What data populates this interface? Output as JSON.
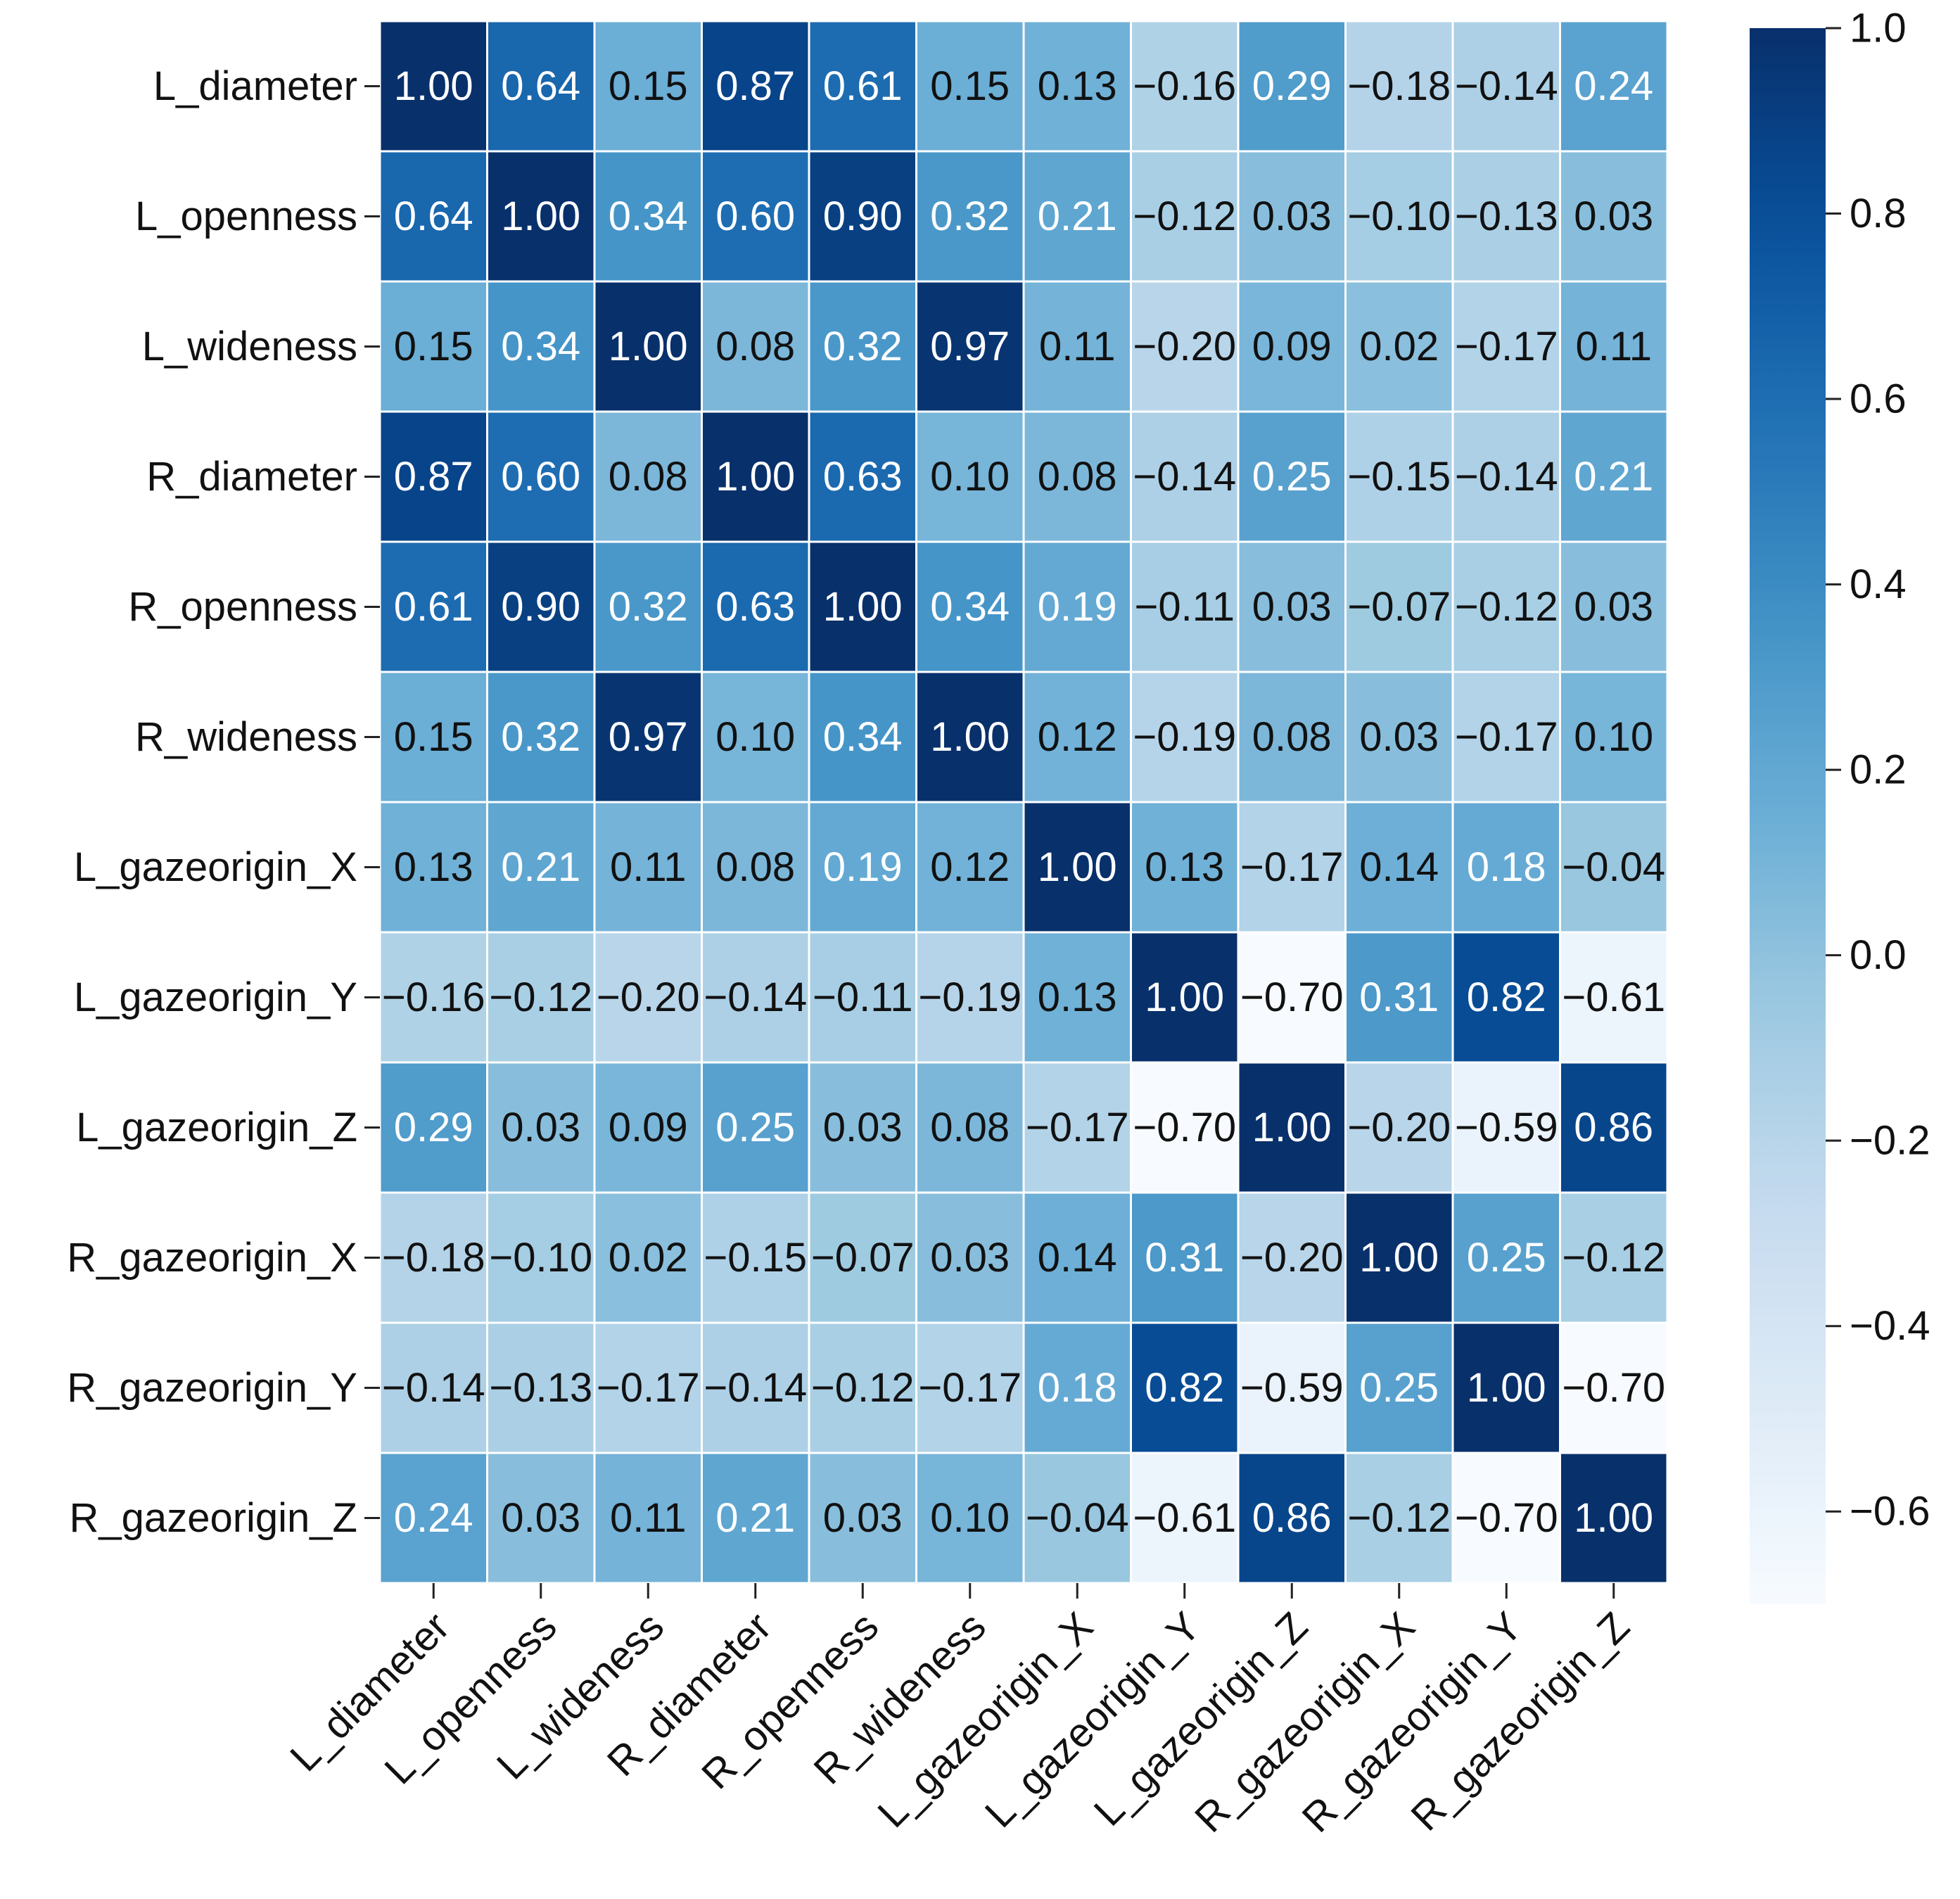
{
  "chart_data": {
    "type": "heatmap",
    "title": "",
    "xlabel": "",
    "ylabel": "",
    "variables": [
      "L_diameter",
      "L_openness",
      "L_wideness",
      "R_diameter",
      "R_openness",
      "R_wideness",
      "L_gazeorigin_X",
      "L_gazeorigin_Y",
      "L_gazeorigin_Z",
      "R_gazeorigin_X",
      "R_gazeorigin_Y",
      "R_gazeorigin_Z"
    ],
    "matrix": [
      [
        1.0,
        0.64,
        0.15,
        0.87,
        0.61,
        0.15,
        0.13,
        -0.16,
        0.29,
        -0.18,
        -0.14,
        0.24
      ],
      [
        0.64,
        1.0,
        0.34,
        0.6,
        0.9,
        0.32,
        0.21,
        -0.12,
        0.03,
        -0.1,
        -0.13,
        0.03
      ],
      [
        0.15,
        0.34,
        1.0,
        0.08,
        0.32,
        0.97,
        0.11,
        -0.2,
        0.09,
        0.02,
        -0.17,
        0.11
      ],
      [
        0.87,
        0.6,
        0.08,
        1.0,
        0.63,
        0.1,
        0.08,
        -0.14,
        0.25,
        -0.15,
        -0.14,
        0.21
      ],
      [
        0.61,
        0.9,
        0.32,
        0.63,
        1.0,
        0.34,
        0.19,
        -0.11,
        0.03,
        -0.07,
        -0.12,
        0.03
      ],
      [
        0.15,
        0.32,
        0.97,
        0.1,
        0.34,
        1.0,
        0.12,
        -0.19,
        0.08,
        0.03,
        -0.17,
        0.1
      ],
      [
        0.13,
        0.21,
        0.11,
        0.08,
        0.19,
        0.12,
        1.0,
        0.13,
        -0.17,
        0.14,
        0.18,
        -0.04
      ],
      [
        -0.16,
        -0.12,
        -0.2,
        -0.14,
        -0.11,
        -0.19,
        0.13,
        1.0,
        -0.7,
        0.31,
        0.82,
        -0.61
      ],
      [
        0.29,
        0.03,
        0.09,
        0.25,
        0.03,
        0.08,
        -0.17,
        -0.7,
        1.0,
        -0.2,
        -0.59,
        0.86
      ],
      [
        -0.18,
        -0.1,
        0.02,
        -0.15,
        -0.07,
        0.03,
        0.14,
        0.31,
        -0.2,
        1.0,
        0.25,
        -0.12
      ],
      [
        -0.14,
        -0.13,
        -0.17,
        -0.14,
        -0.12,
        -0.17,
        0.18,
        0.82,
        -0.59,
        0.25,
        1.0,
        -0.7
      ],
      [
        0.24,
        0.03,
        0.11,
        0.21,
        0.03,
        0.1,
        -0.04,
        -0.61,
        0.86,
        -0.12,
        -0.7,
        1.0
      ]
    ],
    "colorscale": "Blues",
    "vmin": -0.7,
    "vmax": 1.0,
    "colorbar_ticks": [
      1.0,
      0.8,
      0.6,
      0.4,
      0.2,
      0.0,
      -0.2,
      -0.4,
      -0.6
    ],
    "colorbar_tick_labels": [
      "1.0",
      "0.8",
      "0.6",
      "0.4",
      "0.2",
      "0.0",
      "−0.2",
      "−0.4",
      "−0.6"
    ],
    "annotation_format": "0.00"
  }
}
